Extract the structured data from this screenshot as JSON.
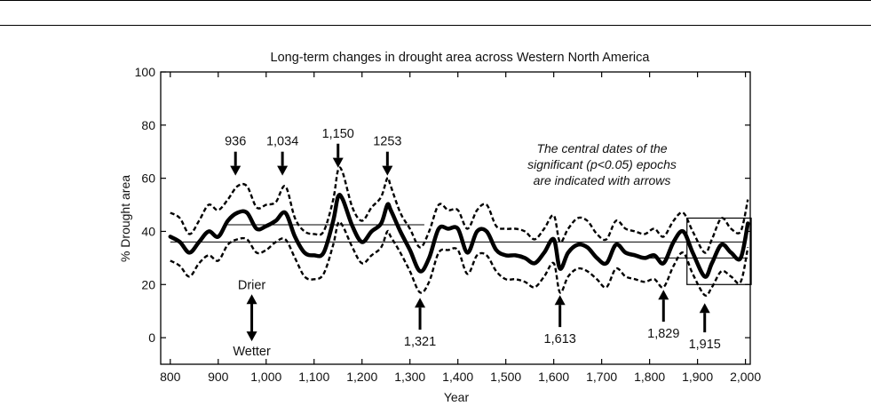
{
  "chart_data": {
    "type": "line",
    "title": "Long-term changes in drought area across Western North America",
    "xlabel": "Year",
    "ylabel": "% Drought area",
    "xlim": [
      780,
      2010
    ],
    "ylim": [
      -10,
      100
    ],
    "xticks": [
      800,
      900,
      1000,
      1100,
      1200,
      1300,
      1400,
      1500,
      1600,
      1700,
      1800,
      1900,
      2000
    ],
    "xtick_labels": [
      "800",
      "900",
      "1,000",
      "1,100",
      "1,200",
      "1,300",
      "1,400",
      "1,500",
      "1,600",
      "1,700",
      "1,800",
      "1,900",
      "2,000"
    ],
    "yticks": [
      0,
      20,
      40,
      60,
      80,
      100
    ],
    "ytick_labels": [
      "0",
      "20",
      "40",
      "60",
      "80",
      "100"
    ],
    "grid": false,
    "series": [
      {
        "role": "mean",
        "style": "thick-solid",
        "x": [
          800,
          820,
          840,
          860,
          880,
          900,
          920,
          940,
          960,
          980,
          1000,
          1020,
          1040,
          1060,
          1080,
          1100,
          1120,
          1140,
          1150,
          1160,
          1180,
          1200,
          1220,
          1240,
          1253,
          1260,
          1280,
          1300,
          1321,
          1340,
          1360,
          1380,
          1400,
          1420,
          1440,
          1460,
          1480,
          1500,
          1520,
          1540,
          1560,
          1580,
          1600,
          1613,
          1630,
          1650,
          1670,
          1690,
          1710,
          1730,
          1750,
          1770,
          1790,
          1810,
          1829,
          1850,
          1870,
          1890,
          1915,
          1930,
          1950,
          1970,
          1990,
          2005
        ],
        "y": [
          38,
          36,
          32,
          36,
          40,
          38,
          44,
          47,
          47,
          41,
          42,
          44,
          47,
          38,
          32,
          31,
          32,
          44,
          53,
          52,
          42,
          36,
          40,
          43,
          50,
          48,
          40,
          33,
          25,
          30,
          41,
          41,
          41,
          32,
          40,
          40,
          33,
          31,
          31,
          30,
          28,
          32,
          37,
          26,
          32,
          35,
          34,
          30,
          28,
          35,
          32,
          31,
          30,
          31,
          28,
          36,
          40,
          32,
          23,
          28,
          35,
          32,
          30,
          43
        ]
      },
      {
        "role": "upper-bound",
        "style": "dashed",
        "x": [
          800,
          820,
          840,
          860,
          880,
          900,
          920,
          940,
          960,
          980,
          1000,
          1020,
          1040,
          1060,
          1080,
          1100,
          1120,
          1140,
          1150,
          1160,
          1180,
          1200,
          1220,
          1240,
          1253,
          1260,
          1280,
          1300,
          1321,
          1340,
          1360,
          1380,
          1400,
          1420,
          1440,
          1460,
          1480,
          1500,
          1520,
          1540,
          1560,
          1580,
          1600,
          1613,
          1630,
          1650,
          1670,
          1690,
          1710,
          1730,
          1750,
          1770,
          1790,
          1810,
          1829,
          1850,
          1870,
          1890,
          1915,
          1930,
          1950,
          1970,
          1990,
          2005
        ],
        "y": [
          47,
          45,
          39,
          44,
          50,
          48,
          52,
          57,
          57,
          49,
          50,
          51,
          57,
          45,
          40,
          39,
          40,
          52,
          63,
          62,
          49,
          44,
          49,
          53,
          60,
          57,
          47,
          41,
          34,
          40,
          50,
          48,
          48,
          41,
          48,
          50,
          42,
          41,
          41,
          40,
          37,
          41,
          46,
          36,
          41,
          45,
          44,
          39,
          37,
          44,
          41,
          40,
          39,
          41,
          38,
          44,
          47,
          40,
          32,
          37,
          45,
          41,
          40,
          52
        ]
      },
      {
        "role": "lower-bound",
        "style": "dashed",
        "x": [
          800,
          820,
          840,
          860,
          880,
          900,
          920,
          940,
          960,
          980,
          1000,
          1020,
          1040,
          1060,
          1080,
          1100,
          1120,
          1140,
          1150,
          1160,
          1180,
          1200,
          1220,
          1240,
          1253,
          1260,
          1280,
          1300,
          1321,
          1340,
          1360,
          1380,
          1400,
          1420,
          1440,
          1460,
          1480,
          1500,
          1520,
          1540,
          1560,
          1580,
          1600,
          1613,
          1630,
          1650,
          1670,
          1690,
          1710,
          1730,
          1750,
          1770,
          1790,
          1810,
          1829,
          1850,
          1870,
          1890,
          1915,
          1930,
          1950,
          1970,
          1990,
          2005
        ],
        "y": [
          29,
          27,
          23,
          28,
          31,
          29,
          35,
          37,
          37,
          32,
          33,
          36,
          37,
          30,
          23,
          22,
          24,
          35,
          43,
          42,
          34,
          28,
          31,
          34,
          40,
          38,
          32,
          25,
          17,
          21,
          32,
          33,
          33,
          24,
          31,
          31,
          25,
          22,
          22,
          21,
          19,
          23,
          28,
          17,
          23,
          26,
          25,
          22,
          19,
          26,
          23,
          22,
          21,
          22,
          19,
          27,
          32,
          24,
          16,
          19,
          25,
          23,
          21,
          34
        ]
      }
    ],
    "reference_lines": [
      {
        "role": "long-term-mean",
        "y": 36,
        "x0": 800,
        "x1": 2000
      },
      {
        "role": "epoch-mean-upper",
        "y": 42.5,
        "x0": 920,
        "x1": 1330
      },
      {
        "role": "epoch-mean-lower",
        "y": 30,
        "x0": 1800,
        "x1": 2005
      }
    ],
    "highlight_box": {
      "x0": 1878,
      "x1": 2012,
      "y0": 20,
      "y1": 45
    },
    "arrows_down": [
      {
        "label": "936",
        "x": 936,
        "tip_y": 61,
        "tail_y": 70
      },
      {
        "label": "1,034",
        "x": 1034,
        "tip_y": 61,
        "tail_y": 70
      },
      {
        "label": "1,150",
        "x": 1150,
        "tip_y": 64,
        "tail_y": 73
      },
      {
        "label": "1253",
        "x": 1253,
        "tip_y": 61,
        "tail_y": 70
      }
    ],
    "arrows_up": [
      {
        "label": "1,321",
        "x": 1321,
        "tip_y": 15,
        "tail_y": 3
      },
      {
        "label": "1,613",
        "x": 1613,
        "tip_y": 16,
        "tail_y": 4
      },
      {
        "label": "1,829",
        "x": 1829,
        "tip_y": 18,
        "tail_y": 6
      },
      {
        "label": "1,915",
        "x": 1915,
        "tip_y": 13,
        "tail_y": 2
      }
    ],
    "annotations": [
      {
        "text": "The central dates of the",
        "style": "italic"
      },
      {
        "text": "significant (p<0.05) epochs",
        "style": "italic"
      },
      {
        "text": "are indicated with arrows",
        "style": "italic"
      }
    ],
    "direction_indicator": {
      "x": 970,
      "y_top": 19,
      "y_bottom": 0,
      "top_label": "Drier",
      "bottom_label": "Wetter"
    },
    "colors": {
      "line": "#000000",
      "text": "#111111",
      "background": "#ffffff"
    }
  }
}
